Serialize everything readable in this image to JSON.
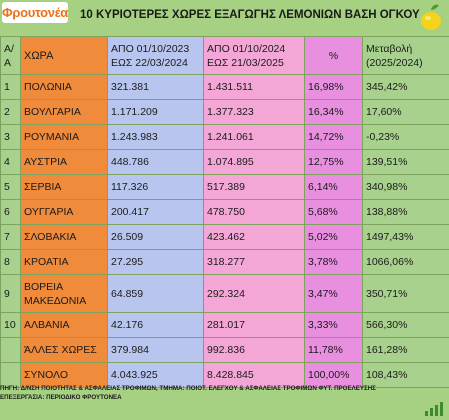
{
  "logo": "Φρουτονέα",
  "title": "10 ΚΥΡΙΟΤΕΡΕΣ ΧΩΡΕΣ ΕΞΑΓΩΓΗΣ ΛΕΜΟΝΙΩΝ ΒΑΣΗ ΟΓΚΟΥ",
  "header": {
    "aa": "Α/Α",
    "country": "ΧΩΡΑ",
    "period1": "ΑΠΟ 01/10/2023 ΕΩΣ 22/03/2024",
    "period2": "ΑΠΟ 01/10/2024 ΕΩΣ 21/03/2025",
    "pct": "%",
    "change": "Μεταβολή (2025/2024)"
  },
  "rows": [
    {
      "aa": "1",
      "country": "ΠΟΛΩΝΙΑ",
      "v1": "321.381",
      "v2": "1.431.511",
      "pct": "16,98%",
      "change": "345,42%"
    },
    {
      "aa": "2",
      "country": "ΒΟΥΛΓΑΡΙΑ",
      "v1": "1.171.209",
      "v2": "1.377.323",
      "pct": "16,34%",
      "change": "17,60%"
    },
    {
      "aa": "3",
      "country": "ΡΟΥΜΑΝΙΑ",
      "v1": "1.243.983",
      "v2": "1.241.061",
      "pct": "14,72%",
      "change": "-0,23%"
    },
    {
      "aa": "4",
      "country": "ΑΥΣΤΡΙΑ",
      "v1": "448.786",
      "v2": "1.074.895",
      "pct": "12,75%",
      "change": "139,51%"
    },
    {
      "aa": "5",
      "country": "ΣΕΡΒΙΑ",
      "v1": "117.326",
      "v2": "517.389",
      "pct": "6,14%",
      "change": "340,98%"
    },
    {
      "aa": "6",
      "country": "ΟΥΓΓΑΡΙΑ",
      "v1": "200.417",
      "v2": "478.750",
      "pct": "5,68%",
      "change": "138,88%"
    },
    {
      "aa": "7",
      "country": "ΣΛΟΒΑΚΙΑ",
      "v1": "26.509",
      "v2": "423.462",
      "pct": "5,02%",
      "change": "1497,43%"
    },
    {
      "aa": "8",
      "country": "ΚΡΟΑΤΙΑ",
      "v1": "27.295",
      "v2": "318.277",
      "pct": "3,78%",
      "change": "1066,06%"
    },
    {
      "aa": "9",
      "country": "ΒΟΡΕΙΑ ΜΑΚΕΔΟΝΙΑ",
      "v1": "64.859",
      "v2": "292.324",
      "pct": "3,47%",
      "change": "350,71%"
    },
    {
      "aa": "10",
      "country": "ΑΛΒΑΝΙΑ",
      "v1": "42.176",
      "v2": "281.017",
      "pct": "3,33%",
      "change": "566,30%"
    },
    {
      "aa": "",
      "country": "ΆΛΛΕΣ ΧΩΡΕΣ",
      "v1": "379.984",
      "v2": "992.836",
      "pct": "11,78%",
      "change": "161,28%"
    },
    {
      "aa": "",
      "country": "ΣΥΝΟΛΟ",
      "v1": "4.043.925",
      "v2": "8.428.845",
      "pct": "100,00%",
      "change": "108,43%"
    }
  ],
  "footer": {
    "source": "ΠΗΓΗ: Δ/ΝΣΗ ΠΟΙΟΤΗΤΑΣ & ΑΣΦΑΛΕΙΑΣ ΤΡΟΦΙΜΩΝ, ΤΜΗΜΑ: ΠΟΙΟΤ. ΕΛΕΓΧΟΥ & ΑΣΦΑΛΕΙΑΣ ΤΡΟΦΙΜΩΝ ΦΥΤ. ΠΡΟΕΛΕΥΣΗΣ",
    "processing": "ΕΠΕΞΕΡΓΑΣΙΑ: ΠΕΡΙΟΔΙΚΟ ΦΡΟΥΤΟΝΕΑ"
  },
  "icons": {
    "top_right": "lemon-icon",
    "bottom_right": "bar-chart-icon"
  }
}
